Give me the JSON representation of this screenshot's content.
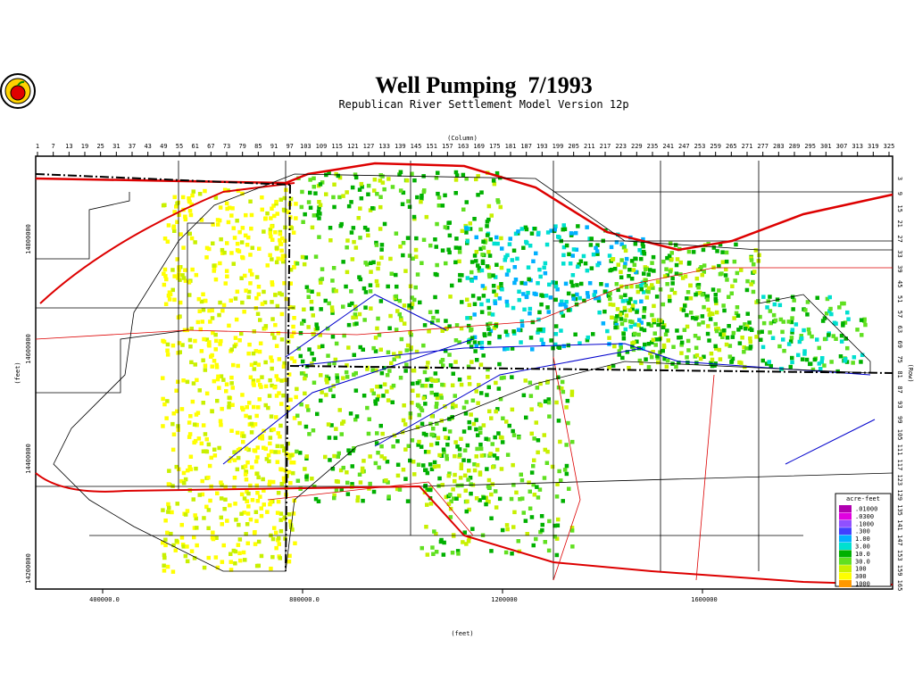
{
  "header": {
    "title": "Well Pumping  7/1993",
    "subtitle": "Republican River Settlement Model Version 12p"
  },
  "top_axis": {
    "label": "(Column)",
    "ticks": [
      "1",
      "7",
      "13",
      "19",
      "25",
      "31",
      "37",
      "43",
      "49",
      "55",
      "61",
      "67",
      "73",
      "79",
      "85",
      "91",
      "97",
      "103",
      "109",
      "115",
      "121",
      "127",
      "133",
      "139",
      "145",
      "151",
      "157",
      "163",
      "169",
      "175",
      "181",
      "187",
      "193",
      "199",
      "205",
      "211",
      "217",
      "223",
      "229",
      "235",
      "241",
      "247",
      "253",
      "259",
      "265",
      "271",
      "277",
      "283",
      "289",
      "295",
      "301",
      "307",
      "313",
      "319",
      "325"
    ]
  },
  "right_axis": {
    "label": "(Row)",
    "ticks": [
      "3",
      "9",
      "15",
      "21",
      "27",
      "33",
      "39",
      "45",
      "51",
      "57",
      "63",
      "69",
      "75",
      "81",
      "87",
      "93",
      "99",
      "105",
      "111",
      "117",
      "123",
      "129",
      "135",
      "141",
      "147",
      "153",
      "159",
      "165"
    ]
  },
  "bottom_axis": {
    "label": "(feet)",
    "ticks": [
      "400000.0",
      "800000.0",
      "1200000",
      "1600000"
    ]
  },
  "left_axis": {
    "label": "(feet)",
    "ticks": [
      "14800000",
      "14600000",
      "14400000",
      "14200000"
    ]
  },
  "legend": {
    "title": "acre-feet",
    "items": [
      {
        "label": ".01000",
        "color": "#b000b0"
      },
      {
        "label": ".0300",
        "color": "#e000e0"
      },
      {
        "label": ".1000",
        "color": "#9050ff"
      },
      {
        "label": ".300",
        "color": "#4040ff"
      },
      {
        "label": "1.00",
        "color": "#00b0ff"
      },
      {
        "label": "3.00",
        "color": "#00e0d0"
      },
      {
        "label": "10.0",
        "color": "#00b000"
      },
      {
        "label": "30.0",
        "color": "#60e020"
      },
      {
        "label": "100",
        "color": "#c8f000"
      },
      {
        "label": "300",
        "color": "#ffff00"
      },
      {
        "label": "1000",
        "color": "#ff9800"
      }
    ]
  }
}
